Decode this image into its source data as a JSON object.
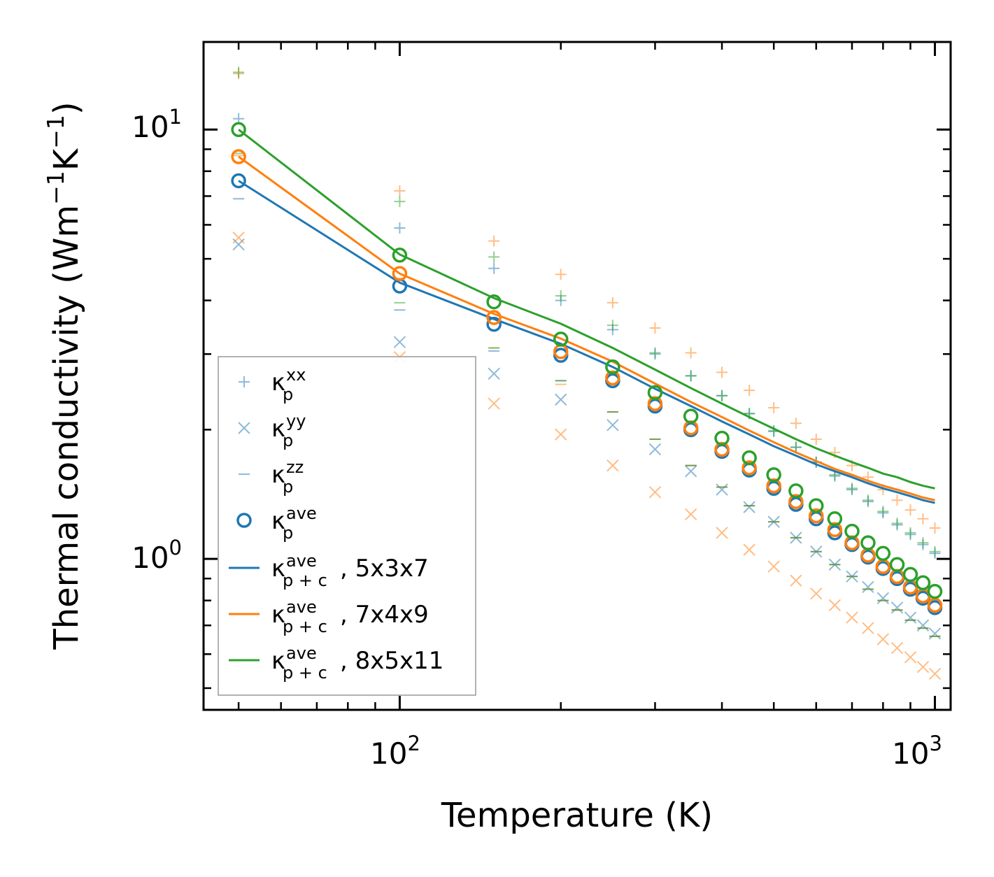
{
  "chart_data": {
    "type": "scatter",
    "title": "",
    "xlabel": "Temperature (K)",
    "ylabel": "Thermal conductivity (Wm$^{-1}$K$^{-1}$)",
    "ylabel_parts": {
      "a": "Thermal conductivity (Wm",
      "e1": "−1",
      "b": "K",
      "e2": "−1",
      "c": ")"
    },
    "xscale": "log",
    "yscale": "log",
    "xlim": [
      43,
      1070
    ],
    "ylim": [
      0.445,
      16
    ],
    "xticks": [
      {
        "value": 100,
        "base": "10",
        "exp": "2"
      },
      {
        "value": 1000,
        "base": "10",
        "exp": "3"
      }
    ],
    "yticks": [
      {
        "value": 1,
        "base": "10",
        "exp": "0"
      },
      {
        "value": 10,
        "base": "10",
        "exp": "1"
      }
    ],
    "x": [
      50,
      100,
      150,
      200,
      250,
      300,
      350,
      400,
      450,
      500,
      550,
      600,
      650,
      700,
      750,
      800,
      850,
      900,
      950,
      1000
    ],
    "series": [
      {
        "name": "5x3x7",
        "color": "#1f77b4",
        "kxx": [
          10.6,
          5.9,
          4.75,
          4.0,
          3.42,
          3.0,
          2.67,
          2.4,
          2.18,
          1.98,
          1.82,
          1.68,
          1.56,
          1.45,
          1.36,
          1.28,
          1.2,
          1.14,
          1.08,
          1.03
        ],
        "kyy": [
          5.4,
          3.2,
          2.7,
          2.35,
          2.05,
          1.8,
          1.6,
          1.45,
          1.32,
          1.22,
          1.12,
          1.04,
          0.97,
          0.91,
          0.86,
          0.81,
          0.77,
          0.73,
          0.7,
          0.67
        ],
        "kzz": [
          6.9,
          3.8,
          3.05,
          2.6,
          2.2,
          1.9,
          1.65,
          1.47,
          1.33,
          1.22,
          1.12,
          1.04,
          0.97,
          0.91,
          0.85,
          0.8,
          0.76,
          0.72,
          0.69,
          0.66
        ],
        "kave": [
          7.6,
          4.32,
          3.52,
          2.98,
          2.6,
          2.27,
          2.0,
          1.78,
          1.61,
          1.46,
          1.34,
          1.24,
          1.15,
          1.08,
          1.01,
          0.95,
          0.9,
          0.85,
          0.81,
          0.77
        ],
        "kpc": [
          7.6,
          4.4,
          3.62,
          3.17,
          2.8,
          2.49,
          2.27,
          2.09,
          1.95,
          1.83,
          1.74,
          1.66,
          1.6,
          1.55,
          1.5,
          1.46,
          1.43,
          1.4,
          1.37,
          1.35
        ]
      },
      {
        "name": "7x4x9",
        "color": "#ff7f0e",
        "kxx": [
          13.5,
          7.2,
          5.5,
          4.6,
          3.95,
          3.45,
          3.02,
          2.72,
          2.47,
          2.25,
          2.07,
          1.9,
          1.77,
          1.65,
          1.55,
          1.45,
          1.37,
          1.3,
          1.24,
          1.18
        ],
        "kyy": [
          5.6,
          2.95,
          2.3,
          1.95,
          1.65,
          1.43,
          1.27,
          1.15,
          1.05,
          0.96,
          0.89,
          0.83,
          0.78,
          0.73,
          0.69,
          0.65,
          0.62,
          0.59,
          0.56,
          0.54
        ],
        "kzz": [
          8.7,
          4.5,
          3.1,
          2.55,
          2.2,
          1.9,
          1.65,
          1.47,
          1.33,
          1.22,
          1.12,
          1.04,
          0.97,
          0.91,
          0.85,
          0.8,
          0.76,
          0.72,
          0.69,
          0.66
        ],
        "kave": [
          8.65,
          4.62,
          3.65,
          3.04,
          2.64,
          2.3,
          2.02,
          1.8,
          1.63,
          1.48,
          1.36,
          1.26,
          1.17,
          1.09,
          1.02,
          0.96,
          0.91,
          0.86,
          0.82,
          0.78
        ],
        "kpc": [
          8.65,
          4.62,
          3.72,
          3.26,
          2.88,
          2.56,
          2.32,
          2.14,
          1.99,
          1.87,
          1.77,
          1.69,
          1.62,
          1.57,
          1.52,
          1.48,
          1.45,
          1.42,
          1.39,
          1.37
        ]
      },
      {
        "name": "8x5x11",
        "color": "#2ca02c",
        "kxx": [
          13.6,
          6.8,
          5.05,
          4.1,
          3.5,
          3.02,
          2.67,
          2.4,
          2.18,
          1.99,
          1.82,
          1.68,
          1.57,
          1.46,
          1.37,
          1.29,
          1.21,
          1.15,
          1.09,
          1.04
        ],
        "kyy": [],
        "kzz": [
          8.8,
          3.95,
          3.1,
          2.6,
          2.2,
          1.9,
          1.65,
          1.47,
          1.33,
          1.22,
          1.12,
          1.04,
          0.97,
          0.91,
          0.85,
          0.8,
          0.76,
          0.72,
          0.69,
          0.66
        ],
        "kave": [
          10.0,
          5.1,
          3.97,
          3.25,
          2.8,
          2.44,
          2.15,
          1.91,
          1.72,
          1.57,
          1.44,
          1.33,
          1.24,
          1.16,
          1.09,
          1.03,
          0.97,
          0.92,
          0.88,
          0.84
        ],
        "kpc": [
          10.0,
          5.12,
          4.05,
          3.53,
          3.1,
          2.76,
          2.5,
          2.3,
          2.14,
          2.01,
          1.9,
          1.81,
          1.74,
          1.68,
          1.63,
          1.58,
          1.55,
          1.51,
          1.48,
          1.46
        ]
      }
    ],
    "legend": {
      "location": "lower-left",
      "entries": [
        {
          "key": "kxx",
          "kappa": "κ",
          "sup": "xx",
          "sub": "p",
          "suffix": ""
        },
        {
          "key": "kyy",
          "kappa": "κ",
          "sup": "yy",
          "sub": "p",
          "suffix": ""
        },
        {
          "key": "kzz",
          "kappa": "κ",
          "sup": "zz",
          "sub": "p",
          "suffix": ""
        },
        {
          "key": "kave",
          "kappa": "κ",
          "sup": "ave",
          "sub": "p",
          "suffix": ""
        },
        {
          "key": "line0",
          "kappa": "κ",
          "sup": "ave",
          "sub": "p + c",
          "suffix": ", 5x3x7"
        },
        {
          "key": "line1",
          "kappa": "κ",
          "sup": "ave",
          "sub": "p + c",
          "suffix": ", 7x4x9"
        },
        {
          "key": "line2",
          "kappa": "κ",
          "sup": "ave",
          "sub": "p + c",
          "suffix": ", 8x5x11"
        }
      ]
    }
  }
}
